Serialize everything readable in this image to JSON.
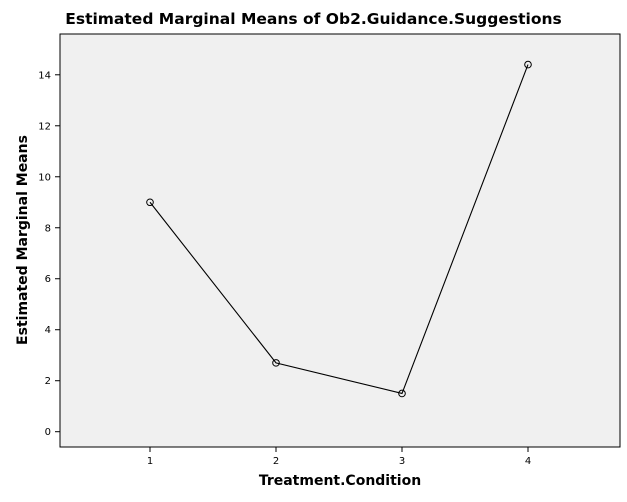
{
  "chart_data": {
    "type": "line",
    "title": "Estimated Marginal Means of Ob2.Guidance.Suggestions",
    "xlabel": "Treatment.Condition",
    "ylabel": "Estimated Marginal Means",
    "categories": [
      "1",
      "2",
      "3",
      "4"
    ],
    "values": [
      9.0,
      2.7,
      1.5,
      14.4
    ],
    "ylim": [
      -0.6,
      15.6
    ],
    "yticks": [
      0,
      2,
      4,
      6,
      8,
      10,
      12,
      14
    ],
    "grid": false,
    "legend": "none",
    "colors": {
      "plot_background": "#f0f0f0",
      "line": "#000000",
      "marker": "#000000"
    }
  }
}
